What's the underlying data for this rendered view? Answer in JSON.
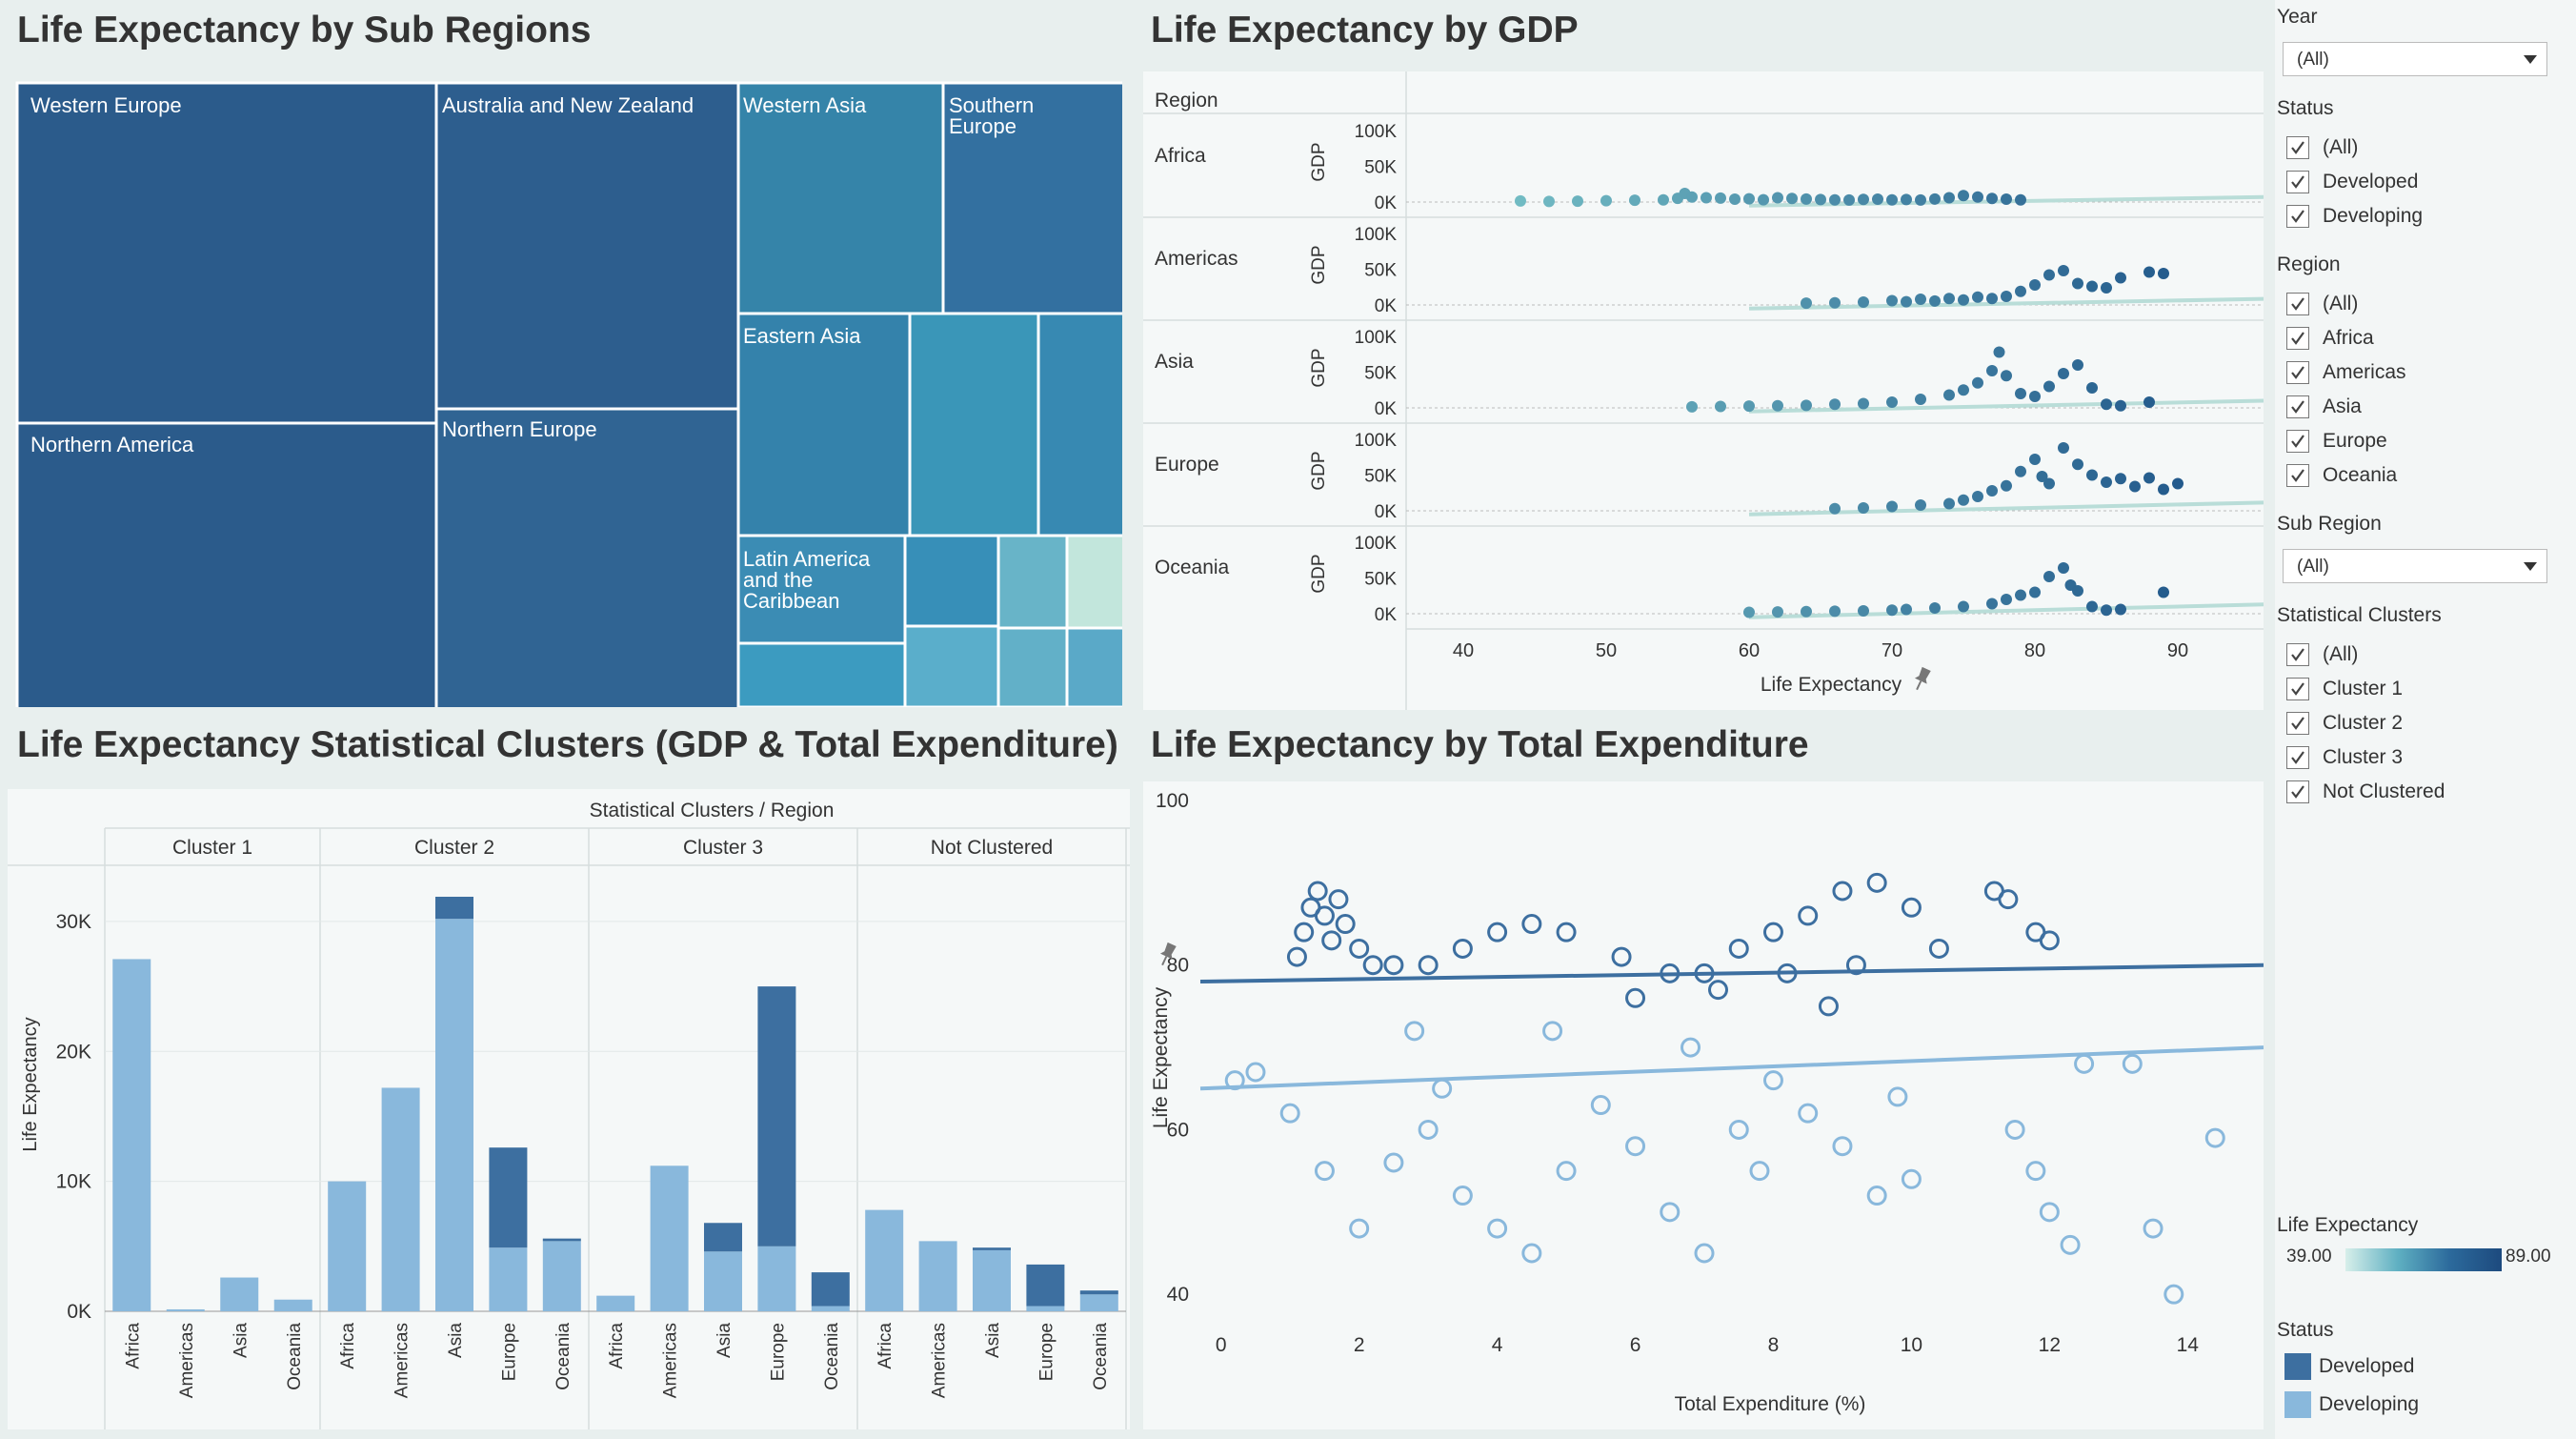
{
  "titles": {
    "treemap": "Life Expectancy by Sub Regions",
    "gdp": "Life Expectancy by GDP",
    "clusters": "Life Expectancy Statistical Clusters (GDP & Total Expenditure)",
    "expenditure": "Life Expectancy by Total Expenditure"
  },
  "colors": {
    "developed": "#3d6fa0",
    "developing": "#89b8dc",
    "scale_low": "#d7efea",
    "scale_high": "#1d4a7e",
    "background": "#e8efee",
    "panel": "#f5f8f8"
  },
  "filters": {
    "year": {
      "label": "Year",
      "value": "(All)"
    },
    "status": {
      "label": "Status",
      "options": [
        "(All)",
        "Developed",
        "Developing"
      ]
    },
    "region": {
      "label": "Region",
      "options": [
        "(All)",
        "Africa",
        "Americas",
        "Asia",
        "Europe",
        "Oceania"
      ]
    },
    "sub_region": {
      "label": "Sub Region",
      "value": "(All)"
    },
    "clusters": {
      "label": "Statistical Clusters",
      "options": [
        "(All)",
        "Cluster 1",
        "Cluster 2",
        "Cluster 3",
        "Not Clustered"
      ]
    }
  },
  "legend": {
    "life_exp_label": "Life Expectancy",
    "min": "39.00",
    "max": "89.00",
    "status_label": "Status",
    "status_items": [
      "Developed",
      "Developing"
    ]
  },
  "chart_data": [
    {
      "type": "treemap",
      "title": "Life Expectancy by Sub Regions",
      "labels": [
        "Western Europe",
        "Northern America",
        "Australia and New Zealand",
        "Northern Europe",
        "Western Asia",
        "Southern Europe",
        "Eastern Asia",
        "Latin America and the Caribbean"
      ],
      "labels_display": [
        "Western Europe",
        "Northern America",
        "Australia and New Zealand",
        "Northern Europe",
        "Western Asia",
        "Southern\nEurope",
        "Eastern Asia",
        "Latin America\nand the\nCaribbean"
      ]
    },
    {
      "type": "scatter",
      "title": "Life Expectancy by GDP",
      "row_header": "Region",
      "rows": [
        "Africa",
        "Americas",
        "Asia",
        "Europe",
        "Oceania"
      ],
      "xlabel": "Life Expectancy",
      "ylabel": "GDP",
      "xlim": [
        36,
        96
      ],
      "xticks": [
        40,
        50,
        60,
        70,
        80,
        90
      ],
      "ylim": [
        0,
        120000
      ],
      "yticks": [
        "0K",
        "50K",
        "100K"
      ],
      "series": [
        {
          "region": "Africa",
          "points": [
            [
              44,
              1500
            ],
            [
              46,
              900
            ],
            [
              48,
              1200
            ],
            [
              50,
              1800
            ],
            [
              52,
              2500
            ],
            [
              54,
              3000
            ],
            [
              55,
              5200
            ],
            [
              55.5,
              12000
            ],
            [
              56,
              7000
            ],
            [
              57,
              6000
            ],
            [
              58,
              5500
            ],
            [
              59,
              4000
            ],
            [
              60,
              4500
            ],
            [
              61,
              3200
            ],
            [
              62,
              6000
            ],
            [
              63,
              5000
            ],
            [
              64,
              4200
            ],
            [
              65,
              3500
            ],
            [
              66,
              3000
            ],
            [
              67,
              2800
            ],
            [
              68,
              3600
            ],
            [
              69,
              4000
            ],
            [
              70,
              3000
            ],
            [
              71,
              3500
            ],
            [
              72,
              2800
            ],
            [
              73,
              4200
            ],
            [
              74,
              6000
            ],
            [
              75,
              9000
            ],
            [
              76,
              7000
            ],
            [
              77,
              5000
            ],
            [
              78,
              4000
            ],
            [
              79,
              3000
            ]
          ]
        },
        {
          "region": "Americas",
          "points": [
            [
              64,
              2500
            ],
            [
              66,
              3000
            ],
            [
              68,
              4000
            ],
            [
              70,
              6000
            ],
            [
              71,
              4500
            ],
            [
              72,
              8000
            ],
            [
              73,
              5500
            ],
            [
              74,
              9000
            ],
            [
              75,
              7000
            ],
            [
              76,
              11000
            ],
            [
              77,
              9000
            ],
            [
              78,
              12000
            ],
            [
              79,
              19000
            ],
            [
              80,
              28000
            ],
            [
              81,
              42000
            ],
            [
              82,
              48000
            ],
            [
              83,
              30000
            ],
            [
              84,
              26000
            ],
            [
              85,
              24000
            ],
            [
              86,
              38000
            ],
            [
              88,
              46000
            ],
            [
              89,
              44000
            ]
          ]
        },
        {
          "region": "Asia",
          "points": [
            [
              56,
              1500
            ],
            [
              58,
              2000
            ],
            [
              60,
              2500
            ],
            [
              62,
              3000
            ],
            [
              64,
              3500
            ],
            [
              66,
              5000
            ],
            [
              68,
              6000
            ],
            [
              70,
              8000
            ],
            [
              72,
              12000
            ],
            [
              74,
              18000
            ],
            [
              75,
              25000
            ],
            [
              76,
              35000
            ],
            [
              77,
              52000
            ],
            [
              77.5,
              78000
            ],
            [
              78,
              45000
            ],
            [
              79,
              20000
            ],
            [
              80,
              16000
            ],
            [
              81,
              30000
            ],
            [
              82,
              48000
            ],
            [
              83,
              60000
            ],
            [
              84,
              28000
            ],
            [
              85,
              5000
            ],
            [
              86,
              3000
            ],
            [
              88,
              8000
            ]
          ]
        },
        {
          "region": "Europe",
          "points": [
            [
              66,
              3000
            ],
            [
              68,
              4000
            ],
            [
              70,
              6000
            ],
            [
              72,
              8000
            ],
            [
              74,
              10000
            ],
            [
              75,
              15000
            ],
            [
              76,
              20000
            ],
            [
              77,
              28000
            ],
            [
              78,
              35000
            ],
            [
              79,
              55000
            ],
            [
              80,
              72000
            ],
            [
              80.5,
              48000
            ],
            [
              81,
              38000
            ],
            [
              82,
              88000
            ],
            [
              83,
              65000
            ],
            [
              84,
              50000
            ],
            [
              85,
              40000
            ],
            [
              86,
              45000
            ],
            [
              87,
              34000
            ],
            [
              88,
              46000
            ],
            [
              89,
              30000
            ],
            [
              90,
              38000
            ]
          ]
        },
        {
          "region": "Oceania",
          "points": [
            [
              60,
              2000
            ],
            [
              62,
              2500
            ],
            [
              64,
              3000
            ],
            [
              66,
              3500
            ],
            [
              68,
              4000
            ],
            [
              70,
              5000
            ],
            [
              71,
              6000
            ],
            [
              73,
              8000
            ],
            [
              75,
              10000
            ],
            [
              77,
              14000
            ],
            [
              78,
              20000
            ],
            [
              79,
              26000
            ],
            [
              80,
              30000
            ],
            [
              81,
              52000
            ],
            [
              82,
              64000
            ],
            [
              82.5,
              40000
            ],
            [
              83,
              32000
            ],
            [
              84,
              10000
            ],
            [
              85,
              5000
            ],
            [
              86,
              6000
            ],
            [
              89,
              30000
            ]
          ]
        }
      ]
    },
    {
      "type": "bar",
      "title": "Life Expectancy Statistical Clusters (GDP & Total Expenditure)",
      "group_header": "Statistical Clusters  /  Region",
      "ylabel": "Life Expectancy",
      "ylim": [
        0,
        33000
      ],
      "yticks": [
        "0K",
        "10K",
        "20K",
        "30K"
      ],
      "groups": [
        "Cluster 1",
        "Cluster 2",
        "Cluster 3",
        "Not Clustered"
      ],
      "categories": [
        "Africa",
        "Americas",
        "Asia",
        "Oceania",
        "Africa",
        "Americas",
        "Asia",
        "Europe",
        "Oceania",
        "Africa",
        "Americas",
        "Asia",
        "Europe",
        "Oceania",
        "Africa",
        "Americas",
        "Asia",
        "Europe",
        "Oceania"
      ],
      "series": [
        {
          "name": "Developing",
          "values": [
            27100,
            150,
            2600,
            900,
            10000,
            17200,
            30200,
            4900,
            5400,
            1200,
            11200,
            4600,
            5000,
            400,
            7800,
            5400,
            4700,
            400,
            1300
          ]
        },
        {
          "name": "Developed",
          "values": [
            0,
            0,
            0,
            0,
            0,
            0,
            1700,
            7700,
            200,
            0,
            0,
            2200,
            20000,
            2600,
            0,
            0,
            200,
            3200,
            300
          ]
        }
      ]
    },
    {
      "type": "scatter",
      "title": "Life Expectancy by Total Expenditure",
      "xlabel": "Total Expenditure (%)",
      "ylabel": "Life Expectancy",
      "xlim": [
        -0.3,
        15.1
      ],
      "xticks": [
        0,
        2,
        4,
        6,
        8,
        10,
        12,
        14
      ],
      "ylim": [
        34,
        100
      ],
      "yticks": [
        40,
        60,
        80,
        100
      ],
      "series": [
        {
          "name": "Developed",
          "trend": [
            [
              -0.3,
              78
            ],
            [
              15.1,
              80
            ]
          ],
          "points": [
            [
              1.1,
              81
            ],
            [
              1.2,
              84
            ],
            [
              1.3,
              87
            ],
            [
              1.4,
              89
            ],
            [
              1.5,
              86
            ],
            [
              1.6,
              83
            ],
            [
              1.7,
              88
            ],
            [
              1.8,
              85
            ],
            [
              2.0,
              82
            ],
            [
              2.2,
              80
            ],
            [
              2.5,
              80
            ],
            [
              3.0,
              80
            ],
            [
              3.5,
              82
            ],
            [
              4.0,
              84
            ],
            [
              4.5,
              85
            ],
            [
              5.0,
              84
            ],
            [
              5.8,
              81
            ],
            [
              6.5,
              79
            ],
            [
              7.0,
              79
            ],
            [
              7.5,
              82
            ],
            [
              8.0,
              84
            ],
            [
              8.5,
              86
            ],
            [
              9.0,
              89
            ],
            [
              9.5,
              90
            ],
            [
              10.0,
              87
            ],
            [
              11.2,
              89
            ],
            [
              11.4,
              88
            ],
            [
              11.8,
              84
            ],
            [
              12.0,
              83
            ],
            [
              7.2,
              77
            ],
            [
              8.2,
              79
            ],
            [
              9.2,
              80
            ],
            [
              6.0,
              76
            ],
            [
              10.4,
              82
            ],
            [
              8.8,
              75
            ]
          ]
        },
        {
          "name": "Developing",
          "trend": [
            [
              -0.3,
              65
            ],
            [
              15.1,
              70
            ]
          ],
          "points": [
            [
              0.2,
              66
            ],
            [
              0.5,
              67
            ],
            [
              1.0,
              62
            ],
            [
              1.5,
              55
            ],
            [
              2.0,
              48
            ],
            [
              2.5,
              56
            ],
            [
              3.0,
              60
            ],
            [
              3.5,
              52
            ],
            [
              4.0,
              48
            ],
            [
              4.5,
              45
            ],
            [
              5.0,
              55
            ],
            [
              5.5,
              63
            ],
            [
              6.0,
              58
            ],
            [
              6.5,
              50
            ],
            [
              7.0,
              45
            ],
            [
              7.5,
              60
            ],
            [
              8.0,
              66
            ],
            [
              8.5,
              62
            ],
            [
              9.0,
              58
            ],
            [
              9.5,
              52
            ],
            [
              10.0,
              54
            ],
            [
              11.5,
              60
            ],
            [
              11.8,
              55
            ],
            [
              12.0,
              50
            ],
            [
              12.3,
              46
            ],
            [
              12.5,
              68
            ],
            [
              13.5,
              48
            ],
            [
              13.8,
              40
            ],
            [
              14.4,
              59
            ],
            [
              13.2,
              68
            ],
            [
              6.8,
              70
            ],
            [
              7.8,
              55
            ],
            [
              3.2,
              65
            ],
            [
              4.8,
              72
            ],
            [
              9.8,
              64
            ],
            [
              2.8,
              72
            ]
          ]
        }
      ]
    }
  ]
}
